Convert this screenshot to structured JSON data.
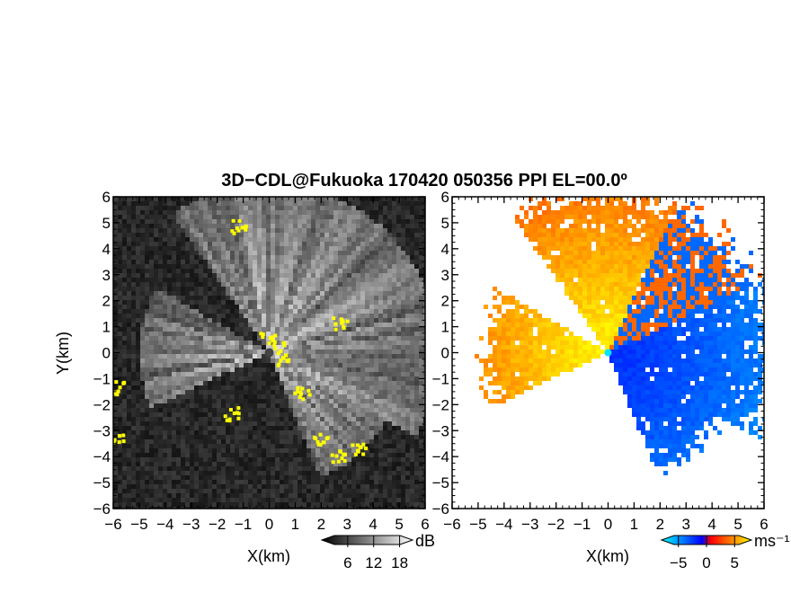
{
  "chart_data": {
    "title": "3D−CDL@Fukuoka 170420 050356 PPI EL=00.0º",
    "panels": [
      {
        "type": "heatmap",
        "name": "backscatter",
        "xlabel": "X(km)",
        "ylabel": "Y(km)",
        "xlim": [
          -6,
          6
        ],
        "ylim": [
          -6,
          6
        ],
        "xticks": [
          -6,
          -5,
          -4,
          -3,
          -2,
          -1,
          0,
          1,
          2,
          3,
          4,
          5,
          6
        ],
        "yticks": [
          -6,
          -5,
          -4,
          -3,
          -2,
          -1,
          0,
          1,
          2,
          3,
          4,
          5,
          6
        ],
        "xtick_labels": [
          "−6",
          "−5",
          "−4",
          "−3",
          "−2",
          "−1",
          "0",
          "1",
          "2",
          "3",
          "4",
          "5",
          "6"
        ],
        "ytick_labels": [
          "−6",
          "−5",
          "−4",
          "−3",
          "−2",
          "−1",
          "0",
          "1",
          "2",
          "3",
          "4",
          "5",
          "6"
        ],
        "colorbar": {
          "unit": "dB",
          "ticks": [
            6,
            12,
            18
          ],
          "tick_labels": [
            "6",
            "12",
            "18"
          ],
          "range": [
            0,
            21
          ],
          "colors": [
            "#000000",
            "#ffffff"
          ]
        },
        "highlight_color": "#ffff00"
      },
      {
        "type": "heatmap",
        "name": "radial-velocity",
        "xlabel": "X(km)",
        "ylabel": "",
        "xlim": [
          -6,
          6
        ],
        "ylim": [
          -6,
          6
        ],
        "xticks": [
          -6,
          -5,
          -4,
          -3,
          -2,
          -1,
          0,
          1,
          2,
          3,
          4,
          5,
          6
        ],
        "xtick_labels": [
          "−6",
          "−5",
          "−4",
          "−3",
          "−2",
          "−1",
          "0",
          "1",
          "2",
          "3",
          "4",
          "5",
          "6"
        ],
        "colorbar": {
          "unit": "ms⁻¹",
          "ticks": [
            -5,
            0,
            5
          ],
          "tick_labels": [
            "−5",
            "0",
            "5"
          ],
          "range": [
            -8,
            8
          ],
          "colors": [
            "#00ffff",
            "#0000ff",
            "#ff0000",
            "#ffff00"
          ]
        }
      }
    ]
  }
}
